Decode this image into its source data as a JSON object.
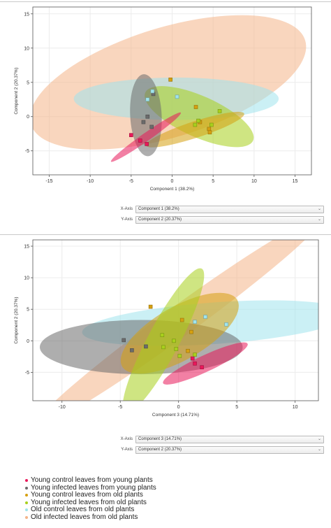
{
  "series_colors": {
    "young_control_young": "#e8185a",
    "young_infected_young": "#6b6b6b",
    "young_control_old": "#d6a010",
    "young_infected_old": "#a8d01c",
    "old_control_old": "#a0e4ec",
    "old_infected_old": "#f4b488"
  },
  "chart_data": [
    {
      "type": "scatter",
      "xlabel": "Component 1 (38.2%)",
      "ylabel": "Component 2 (20.37%)",
      "xlim": [
        -17,
        17
      ],
      "ylim": [
        -8.5,
        16
      ],
      "xticks": [
        -15,
        -10,
        -5,
        0,
        5,
        10,
        15
      ],
      "yticks": [
        -5,
        0,
        5,
        10,
        15
      ],
      "grid": true,
      "ellipses": [
        {
          "series": "old_infected_old",
          "cx": -0.5,
          "cy": 5.0,
          "rx": 17.5,
          "ry": 8.0,
          "angle": -17
        },
        {
          "series": "old_control_old",
          "cx": 0.5,
          "cy": 2.6,
          "rx": 12.5,
          "ry": 3.1,
          "angle": 0
        },
        {
          "series": "young_infected_old",
          "cx": 3.3,
          "cy": 0.0,
          "rx": 7.2,
          "ry": 3.0,
          "angle": 24
        },
        {
          "series": "young_control_old",
          "cx": 2.8,
          "cy": -1.9,
          "rx": 6.3,
          "ry": 1.2,
          "angle": -18
        },
        {
          "series": "young_infected_young",
          "cx": -3.2,
          "cy": 0.2,
          "rx": 5.0,
          "ry": 2.3,
          "angle": 87
        },
        {
          "series": "young_control_young",
          "cx": -3.2,
          "cy": -3.0,
          "rx": 5.2,
          "ry": 0.6,
          "angle": -35
        }
      ],
      "series": [
        {
          "key": "young_control_young",
          "x": [
            -5.0,
            -3.9,
            -3.1
          ],
          "y": [
            -2.7,
            -3.5,
            -4.0
          ]
        },
        {
          "key": "young_infected_young",
          "x": [
            -3.0,
            -2.3,
            -2.5,
            -3.5
          ],
          "y": [
            0.0,
            3.3,
            -1.5,
            -0.8
          ]
        },
        {
          "key": "young_control_old",
          "x": [
            -0.2,
            2.9,
            3.4,
            4.5,
            4.6
          ],
          "y": [
            5.4,
            1.4,
            -0.8,
            -1.8,
            -2.3
          ]
        },
        {
          "key": "young_infected_old",
          "x": [
            2.8,
            4.8,
            5.8,
            3.2
          ],
          "y": [
            -1.2,
            -1.2,
            0.8,
            -0.6
          ]
        },
        {
          "key": "old_control_old",
          "x": [
            -3.0,
            -2.4,
            0.6
          ],
          "y": [
            2.5,
            3.7,
            2.9
          ]
        },
        {
          "key": "old_infected_old",
          "x": [],
          "y": []
        }
      ]
    },
    {
      "type": "scatter",
      "xlabel": "Component 3 (14.71%)",
      "ylabel": "Component 2 (20.37%)",
      "xlim": [
        -12.5,
        12
      ],
      "ylim": [
        -9.5,
        16
      ],
      "xticks": [
        -10,
        -5,
        0,
        5,
        10
      ],
      "yticks": [
        -5,
        0,
        5,
        10,
        15
      ],
      "grid": true,
      "ellipses": [
        {
          "series": "old_infected_old",
          "cx": 0.0,
          "cy": 3.0,
          "rx": 15.3,
          "ry": 2.4,
          "angle": -36
        },
        {
          "series": "old_control_old",
          "cx": 3.2,
          "cy": 2.8,
          "rx": 11.5,
          "ry": 3.3,
          "angle": -4
        },
        {
          "series": "young_infected_young",
          "cx": -3.2,
          "cy": -1.0,
          "rx": 8.7,
          "ry": 4.3,
          "angle": 0
        },
        {
          "series": "young_control_old",
          "cx": 0.1,
          "cy": 1.2,
          "rx": 5.7,
          "ry": 4.2,
          "angle": -30
        },
        {
          "series": "young_infected_old",
          "cx": -1.3,
          "cy": 0.0,
          "rx": 7.0,
          "ry": 2.5,
          "angle": -62
        },
        {
          "series": "young_control_young",
          "cx": 2.3,
          "cy": -3.6,
          "rx": 4.0,
          "ry": 1.3,
          "angle": -25
        }
      ],
      "series": [
        {
          "key": "young_control_young",
          "x": [
            1.2,
            1.4,
            2.0
          ],
          "y": [
            -2.8,
            -3.6,
            -4.2
          ]
        },
        {
          "key": "young_infected_young",
          "x": [
            -4.7,
            -4.0,
            -2.8
          ],
          "y": [
            0.1,
            -1.5,
            -0.9
          ]
        },
        {
          "key": "young_control_old",
          "x": [
            -2.4,
            0.3,
            1.1,
            0.8
          ],
          "y": [
            5.4,
            3.3,
            1.4,
            -1.6
          ]
        },
        {
          "key": "young_infected_old",
          "x": [
            -1.4,
            -1.3,
            -0.2,
            0.1,
            1.4,
            -0.4
          ],
          "y": [
            0.9,
            -1.0,
            -1.3,
            -2.4,
            -2.2,
            0.0
          ]
        },
        {
          "key": "old_control_old",
          "x": [
            1.4,
            2.3,
            4.1
          ],
          "y": [
            3.0,
            3.8,
            2.6
          ]
        },
        {
          "key": "old_infected_old",
          "x": [],
          "y": []
        }
      ]
    }
  ],
  "axis_selectors": [
    {
      "x_label": "X-Axis",
      "x_value": "Component 1 (38.2%)",
      "y_label": "Y-Axis",
      "y_value": "Component 2 (20.37%)"
    },
    {
      "x_label": "X-Axis",
      "x_value": "Component 3 (14.71%)",
      "y_label": "Y-Axis",
      "y_value": "Component 2 (20.37%)"
    }
  ],
  "legend": {
    "items": [
      {
        "key": "young_control_young",
        "label": "Young control leaves from young plants"
      },
      {
        "key": "young_infected_young",
        "label": "Young infected leaves from young plants"
      },
      {
        "key": "young_control_old",
        "label": "Young control leaves from old plants"
      },
      {
        "key": "young_infected_old",
        "label": "Young infected leaves from old plants"
      },
      {
        "key": "old_control_old",
        "label": "Old control leaves from old plants"
      },
      {
        "key": "old_infected_old",
        "label": "Old infected leaves from old plants"
      }
    ]
  }
}
